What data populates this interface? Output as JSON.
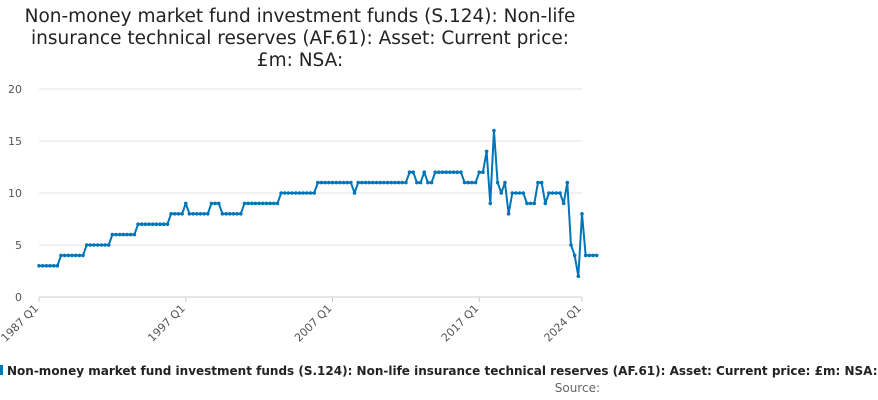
{
  "title_lines": [
    "Non-money market fund investment funds (S.124): Non-life",
    "insurance technical reserves (AF.61): Asset: Current price:",
    "£m: NSA:"
  ],
  "legend_label": "Non-money market fund investment funds (S.124): Non-life insurance technical reserves (AF.61): Asset: Current price: £m: NSA:",
  "source_label": "Source:",
  "colors": {
    "line": "#0075b8",
    "grid": "#e6e6e6",
    "axis": "#cccccc"
  },
  "chart_data": {
    "type": "line",
    "title": "Non-money market fund investment funds (S.124): Non-life insurance technical reserves (AF.61): Asset: Current price: £m: NSA:",
    "xlabel": "",
    "ylabel": "",
    "ylim": [
      0,
      20
    ],
    "yticks": [
      0,
      5,
      10,
      15,
      20
    ],
    "x_start": "1987 Q1",
    "x_end": "2024 Q1",
    "xticks": [
      "1987 Q1",
      "1997 Q1",
      "2007 Q1",
      "2017 Q1",
      "2024 Q1"
    ],
    "series": [
      {
        "name": "Non-money market fund investment funds (S.124): Non-life insurance technical reserves (AF.61): Asset: Current price: £m: NSA:",
        "runs": [
          [
            3,
            6
          ],
          [
            4,
            7
          ],
          [
            5,
            7
          ],
          [
            6,
            7
          ],
          [
            7,
            9
          ],
          [
            8,
            4
          ],
          [
            9,
            1
          ],
          [
            8,
            6
          ],
          [
            9,
            3
          ],
          [
            8,
            6
          ],
          [
            9,
            10
          ],
          [
            10,
            10
          ],
          [
            11,
            10
          ],
          [
            10,
            1
          ],
          [
            11,
            14
          ],
          [
            12,
            2
          ],
          [
            11,
            2
          ],
          [
            12,
            1
          ],
          [
            11,
            2
          ],
          [
            12,
            8
          ],
          [
            11,
            4
          ],
          [
            12,
            2
          ],
          [
            14,
            1
          ],
          [
            9,
            1
          ],
          [
            16,
            1
          ],
          [
            11,
            1
          ],
          [
            10,
            1
          ],
          [
            11,
            1
          ],
          [
            8,
            1
          ],
          [
            10,
            4
          ],
          [
            9,
            3
          ],
          [
            11,
            2
          ],
          [
            9,
            1
          ],
          [
            10,
            4
          ],
          [
            9,
            1
          ],
          [
            11,
            1
          ],
          [
            5,
            1
          ],
          [
            4,
            1
          ],
          [
            2,
            1
          ],
          [
            8,
            1
          ],
          [
            4,
            4
          ]
        ]
      }
    ]
  }
}
